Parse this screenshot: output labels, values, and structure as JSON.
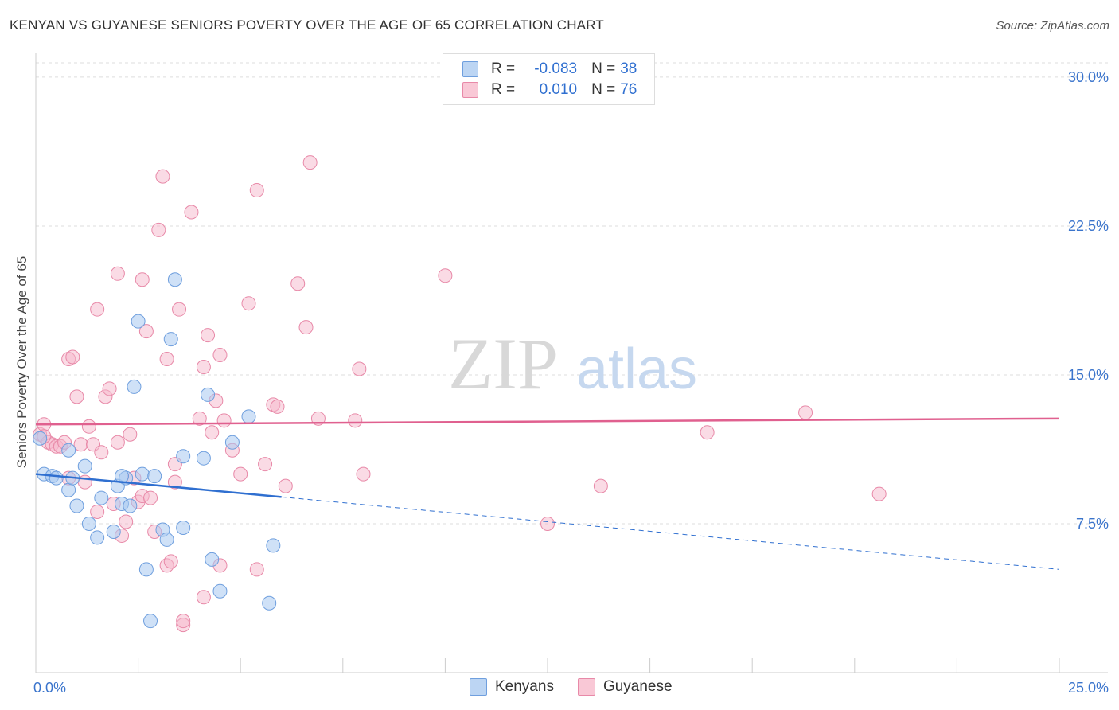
{
  "title": "KENYAN VS GUYANESE SENIORS POVERTY OVER THE AGE OF 65 CORRELATION CHART",
  "source": "Source: ZipAtlas.com",
  "watermark": {
    "zip": "ZIP",
    "atlas": "atlas"
  },
  "legend_stats": [
    {
      "r_label": "R =",
      "r_value": "-0.083",
      "n_label": "N =",
      "n_value": "38"
    },
    {
      "r_label": "R =",
      "r_value": "0.010",
      "n_label": "N =",
      "n_value": "76"
    }
  ],
  "bottom_legend": [
    "Kenyans",
    "Guyanese"
  ],
  "colors": {
    "kenyans_fill": "#a8c8f0",
    "kenyans_stroke": "#6f9fde",
    "kenyans_line": "#2f6fd0",
    "guyanese_fill": "#f6b8cb",
    "guyanese_stroke": "#e889a8",
    "guyanese_line": "#e0608f",
    "tick_label": "#3a74cc",
    "grid": "#dddddd"
  },
  "chart_data": {
    "type": "scatter",
    "title": "KENYAN VS GUYANESE SENIORS POVERTY OVER THE AGE OF 65 CORRELATION CHART",
    "xlabel": "",
    "ylabel": "Seniors Poverty Over the Age of 65",
    "xlim": [
      0,
      25
    ],
    "ylim": [
      0,
      31.2
    ],
    "x_tick_labels": [
      "0.0%",
      "25.0%"
    ],
    "y_ticks": [
      7.5,
      15.0,
      22.5,
      30.0
    ],
    "y_tick_labels": [
      "7.5%",
      "15.0%",
      "22.5%",
      "30.0%"
    ],
    "grid": true,
    "legend_position": "top-center",
    "series": [
      {
        "name": "Kenyans",
        "r": -0.083,
        "n": 38,
        "trend": {
          "solid_x": [
            0,
            6.0
          ],
          "dashed_x": [
            6.0,
            25
          ],
          "y_at_0": 10.0,
          "y_at_25": 5.2
        },
        "points": [
          [
            0.1,
            11.8
          ],
          [
            0.2,
            10.0
          ],
          [
            0.4,
            9.9
          ],
          [
            0.5,
            9.8
          ],
          [
            0.8,
            11.2
          ],
          [
            1.2,
            10.4
          ],
          [
            0.8,
            9.2
          ],
          [
            1.0,
            8.4
          ],
          [
            1.3,
            7.5
          ],
          [
            1.5,
            6.8
          ],
          [
            1.6,
            8.8
          ],
          [
            1.9,
            7.1
          ],
          [
            2.0,
            9.4
          ],
          [
            2.1,
            8.5
          ],
          [
            2.2,
            9.8
          ],
          [
            2.3,
            8.4
          ],
          [
            2.4,
            14.4
          ],
          [
            2.5,
            17.7
          ],
          [
            2.6,
            10.0
          ],
          [
            2.7,
            5.2
          ],
          [
            2.8,
            2.6
          ],
          [
            2.9,
            9.9
          ],
          [
            3.1,
            7.2
          ],
          [
            3.2,
            6.7
          ],
          [
            3.3,
            16.8
          ],
          [
            3.4,
            19.8
          ],
          [
            3.6,
            7.3
          ],
          [
            3.6,
            10.9
          ],
          [
            4.1,
            10.8
          ],
          [
            4.2,
            14.0
          ],
          [
            4.3,
            5.7
          ],
          [
            4.5,
            4.1
          ],
          [
            4.8,
            11.6
          ],
          [
            5.2,
            12.9
          ],
          [
            5.7,
            3.5
          ],
          [
            5.8,
            6.4
          ],
          [
            0.9,
            9.8
          ],
          [
            2.1,
            9.9
          ]
        ]
      },
      {
        "name": "Guyanese",
        "r": 0.01,
        "n": 76,
        "trend": {
          "solid_x": [
            0,
            25
          ],
          "y_at_0": 12.5,
          "y_at_25": 12.8
        },
        "points": [
          [
            0.1,
            12.0
          ],
          [
            0.2,
            12.5
          ],
          [
            0.3,
            11.6
          ],
          [
            0.4,
            11.5
          ],
          [
            0.5,
            11.4
          ],
          [
            0.6,
            11.4
          ],
          [
            0.7,
            11.6
          ],
          [
            0.8,
            9.8
          ],
          [
            0.8,
            15.8
          ],
          [
            0.9,
            15.9
          ],
          [
            1.0,
            13.9
          ],
          [
            1.1,
            11.5
          ],
          [
            1.2,
            9.6
          ],
          [
            1.3,
            12.4
          ],
          [
            1.4,
            11.5
          ],
          [
            1.5,
            18.3
          ],
          [
            1.5,
            8.1
          ],
          [
            1.6,
            11.1
          ],
          [
            1.7,
            13.9
          ],
          [
            1.8,
            14.3
          ],
          [
            1.9,
            8.5
          ],
          [
            2.0,
            20.1
          ],
          [
            2.0,
            11.6
          ],
          [
            2.1,
            6.9
          ],
          [
            2.2,
            7.6
          ],
          [
            2.3,
            12.0
          ],
          [
            2.4,
            9.8
          ],
          [
            2.5,
            8.6
          ],
          [
            2.6,
            8.9
          ],
          [
            2.6,
            19.8
          ],
          [
            2.7,
            17.2
          ],
          [
            2.8,
            8.8
          ],
          [
            2.9,
            7.1
          ],
          [
            3.0,
            22.3
          ],
          [
            3.1,
            25.0
          ],
          [
            3.2,
            5.4
          ],
          [
            3.2,
            15.8
          ],
          [
            3.3,
            5.6
          ],
          [
            3.4,
            10.5
          ],
          [
            3.4,
            9.6
          ],
          [
            3.5,
            18.3
          ],
          [
            3.6,
            2.4
          ],
          [
            3.6,
            2.6
          ],
          [
            3.8,
            23.2
          ],
          [
            4.0,
            12.8
          ],
          [
            4.1,
            15.4
          ],
          [
            4.1,
            3.8
          ],
          [
            4.2,
            17.0
          ],
          [
            4.3,
            12.1
          ],
          [
            4.4,
            13.7
          ],
          [
            4.5,
            5.4
          ],
          [
            4.5,
            16.0
          ],
          [
            4.6,
            12.7
          ],
          [
            4.8,
            11.2
          ],
          [
            5.0,
            10.0
          ],
          [
            5.2,
            18.6
          ],
          [
            5.4,
            24.3
          ],
          [
            5.4,
            5.2
          ],
          [
            5.6,
            10.5
          ],
          [
            5.8,
            13.5
          ],
          [
            5.9,
            13.4
          ],
          [
            6.1,
            9.4
          ],
          [
            6.4,
            19.6
          ],
          [
            6.6,
            17.4
          ],
          [
            6.7,
            25.7
          ],
          [
            6.9,
            12.8
          ],
          [
            7.8,
            12.7
          ],
          [
            7.9,
            15.3
          ],
          [
            8.0,
            10.0
          ],
          [
            10.0,
            20.0
          ],
          [
            12.5,
            7.5
          ],
          [
            13.8,
            9.4
          ],
          [
            16.4,
            12.1
          ],
          [
            18.8,
            13.1
          ],
          [
            20.6,
            9.0
          ],
          [
            0.2,
            11.9
          ]
        ]
      }
    ]
  }
}
